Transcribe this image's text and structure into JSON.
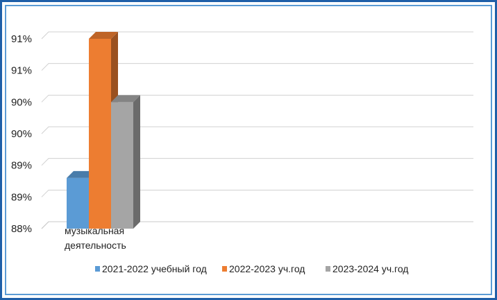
{
  "chart_data": {
    "type": "bar",
    "categories": [
      "музыкальная деятельность"
    ],
    "category_lines": [
      [
        "музыкальная",
        "деятельность"
      ]
    ],
    "series": [
      {
        "name": "2021-2022 учебный год",
        "values": [
          88.8
        ],
        "color": "#5b9bd5"
      },
      {
        "name": "2022-2023 уч.год",
        "values": [
          91.0
        ],
        "color": "#ed7d31"
      },
      {
        "name": "2023-2024 уч.год",
        "values": [
          90.0
        ],
        "color": "#a5a5a5"
      }
    ],
    "y_ticks": [
      88,
      88.5,
      89,
      89.5,
      90,
      90.5,
      91
    ],
    "y_tick_labels": [
      "88%",
      "89%",
      "89%",
      "90%",
      "90%",
      "91%",
      "91%"
    ],
    "ylim": [
      88,
      91
    ],
    "grid": true,
    "legend": "bottom",
    "style": "3d-column",
    "title": "",
    "xlabel": "",
    "ylabel": ""
  }
}
